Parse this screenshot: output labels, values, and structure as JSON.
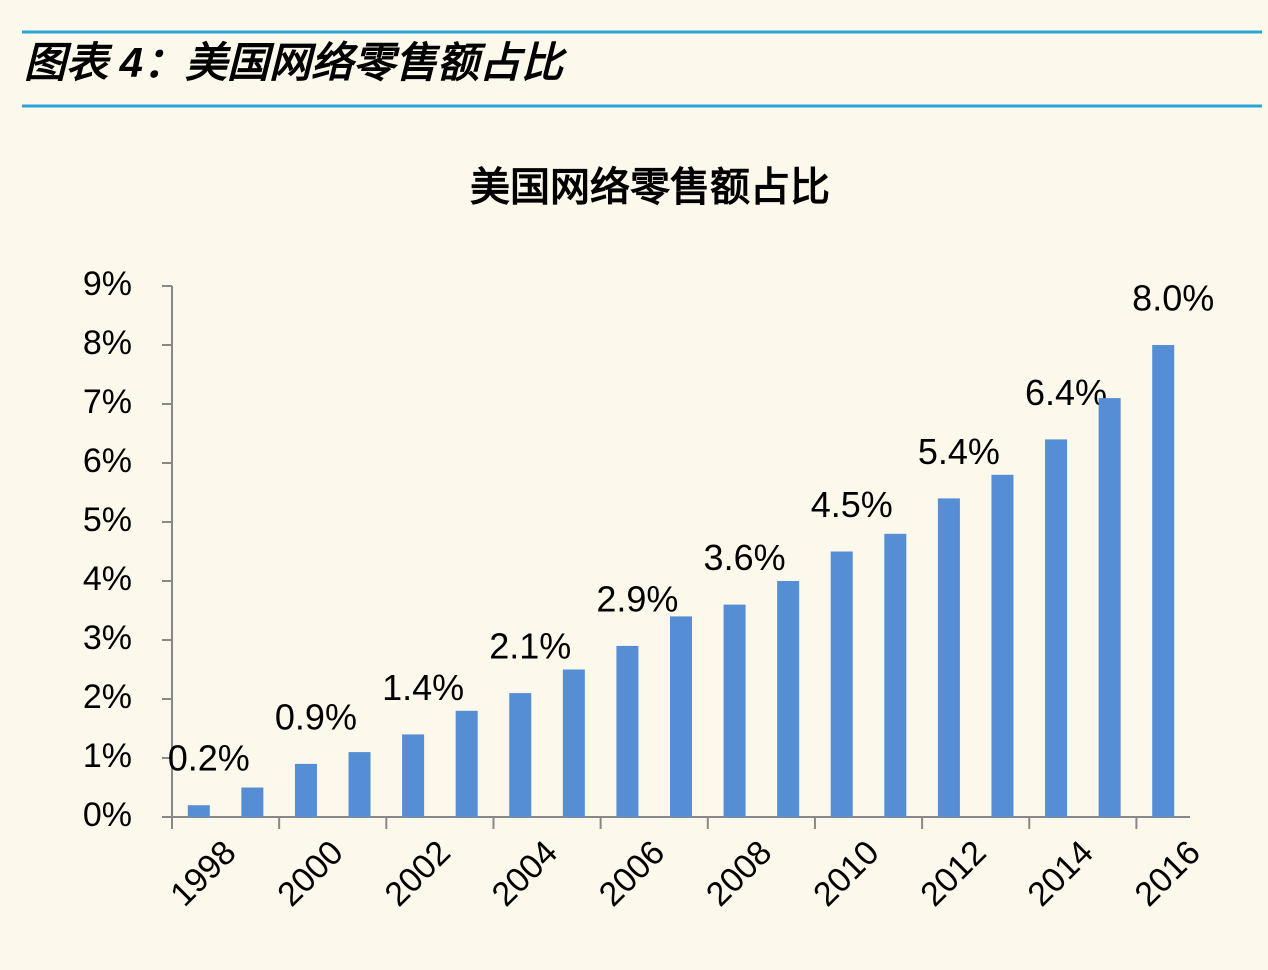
{
  "header": {
    "title": "图表 4：美国网络零售额占比"
  },
  "chart_data": {
    "type": "bar",
    "title": "美国网络零售额占比",
    "categories": [
      "1998",
      null,
      "2000",
      null,
      "2002",
      null,
      "2004",
      null,
      "2006",
      null,
      "2008",
      null,
      "2010",
      null,
      "2012",
      null,
      "2014",
      null,
      "2016"
    ],
    "values": [
      0.2,
      0.5,
      0.9,
      1.1,
      1.4,
      1.8,
      2.1,
      2.5,
      2.9,
      3.4,
      3.6,
      4.0,
      4.5,
      4.8,
      5.4,
      5.8,
      6.4,
      7.1,
      8.0
    ],
    "value_labels": [
      "0.2%",
      null,
      "0.9%",
      null,
      "1.4%",
      null,
      "2.1%",
      null,
      "2.9%",
      null,
      "3.6%",
      null,
      "4.5%",
      null,
      "5.4%",
      null,
      "6.4%",
      null,
      "8.0%"
    ],
    "color": "#558ed5",
    "ylim": [
      0,
      9
    ],
    "yticks": [
      {
        "value": 0,
        "label": "0%"
      },
      {
        "value": 1,
        "label": "1%"
      },
      {
        "value": 2,
        "label": "2%"
      },
      {
        "value": 3,
        "label": "3%"
      },
      {
        "value": 4,
        "label": "4%"
      },
      {
        "value": 5,
        "label": "5%"
      },
      {
        "value": 6,
        "label": "6%"
      },
      {
        "value": 7,
        "label": "7%"
      },
      {
        "value": 8,
        "label": "8%"
      },
      {
        "value": 9,
        "label": "9%"
      }
    ],
    "grid": false
  }
}
